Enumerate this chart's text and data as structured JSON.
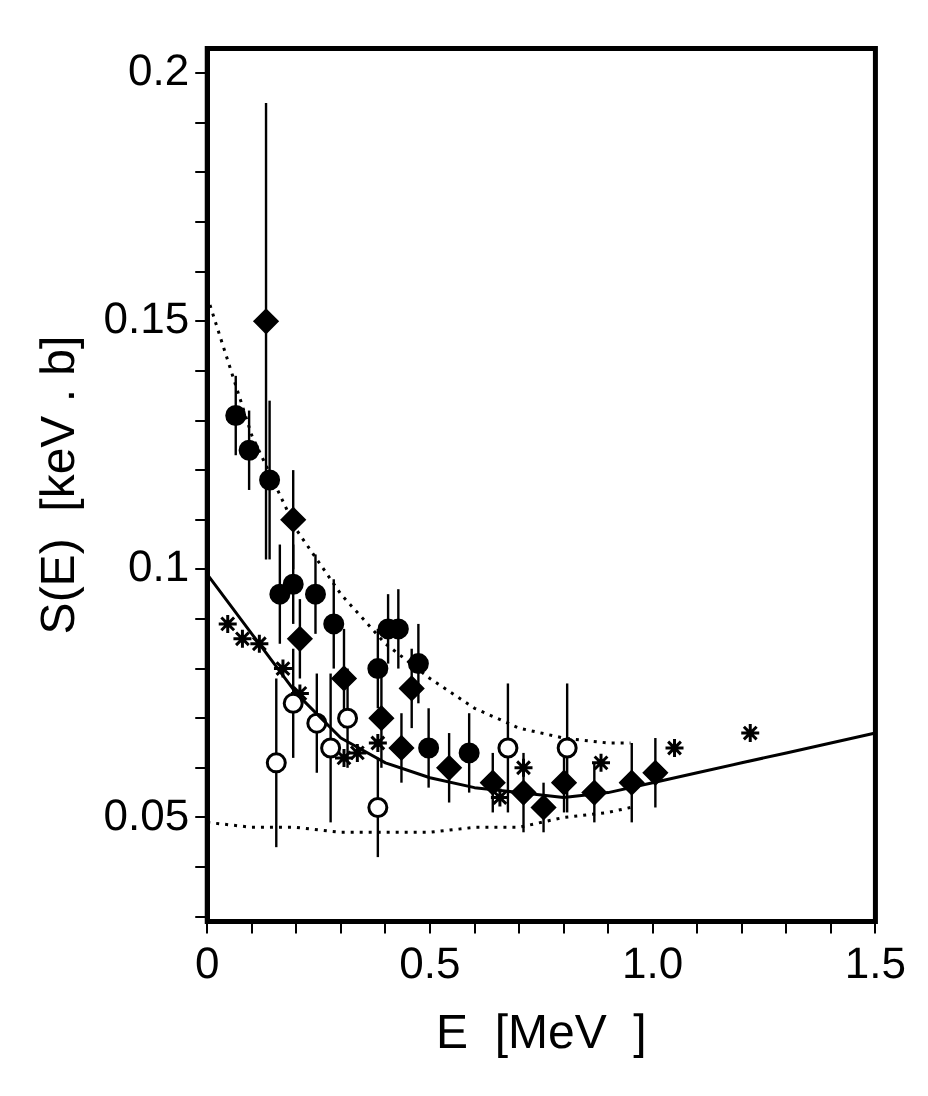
{
  "chart_data": {
    "type": "scatter",
    "xlabel": "E  [MeV  ]",
    "ylabel": "S(E)  [keV . b]",
    "xlim": [
      0,
      1.5
    ],
    "ylim": [
      0.029,
      0.205
    ],
    "xticks": [
      0,
      {
        "value": 0.1,
        "label": null
      },
      {
        "value": 0.2,
        "label": null
      },
      {
        "value": 0.3,
        "label": null
      },
      {
        "value": 0.4,
        "label": null
      },
      0.5,
      {
        "value": 0.6,
        "label": null
      },
      {
        "value": 0.7,
        "label": null
      },
      {
        "value": 0.8,
        "label": null
      },
      {
        "value": 0.9,
        "label": null
      },
      {
        "value": 1,
        "label": "1.0"
      },
      {
        "value": 1.1,
        "label": null
      },
      {
        "value": 1.2,
        "label": null
      },
      {
        "value": 1.3,
        "label": null
      },
      {
        "value": 1.4,
        "label": null
      },
      1.5
    ],
    "yticks": [
      {
        "value": 0.03,
        "label": null
      },
      {
        "value": 0.04,
        "label": null
      },
      0.05,
      {
        "value": 0.06,
        "label": null
      },
      {
        "value": 0.07,
        "label": null
      },
      {
        "value": 0.08,
        "label": null
      },
      {
        "value": 0.09,
        "label": null
      },
      0.1,
      {
        "value": 0.11,
        "label": null
      },
      {
        "value": 0.12,
        "label": null
      },
      {
        "value": 0.13,
        "label": null
      },
      {
        "value": 0.14,
        "label": null
      },
      0.15,
      {
        "value": 0.16,
        "label": null
      },
      {
        "value": 0.17,
        "label": null
      },
      {
        "value": 0.18,
        "label": null
      },
      {
        "value": 0.19,
        "label": null
      },
      0.2
    ],
    "grid": false,
    "legend": false,
    "series": [
      {
        "type": "line",
        "color": "#000000",
        "marker": "none",
        "line_style": "dotted",
        "x": [
          0,
          0.1,
          0.2,
          0.3,
          0.4,
          0.5,
          0.6,
          0.7,
          0.8,
          0.9,
          0.95
        ],
        "values": [
          0.155,
          0.127,
          0.108,
          0.095,
          0.085,
          0.078,
          0.072,
          0.068,
          0.066,
          0.065,
          0.065
        ]
      },
      {
        "type": "line",
        "color": "#000000",
        "marker": "none",
        "line_style": "solid",
        "x": [
          0,
          0.1,
          0.2,
          0.3,
          0.4,
          0.5,
          0.6,
          0.7,
          0.8,
          0.9,
          1.0,
          1.1,
          1.2,
          1.3,
          1.4,
          1.5
        ],
        "values": [
          0.099,
          0.087,
          0.075,
          0.066,
          0.061,
          0.058,
          0.056,
          0.055,
          0.054,
          0.055,
          0.057,
          0.059,
          0.061,
          0.063,
          0.065,
          0.067
        ]
      },
      {
        "type": "line",
        "color": "#000000",
        "marker": "none",
        "line_style": "dotted",
        "x": [
          0,
          0.1,
          0.2,
          0.3,
          0.4,
          0.5,
          0.6,
          0.7,
          0.8,
          0.9,
          0.95
        ],
        "values": [
          0.049,
          0.048,
          0.048,
          0.047,
          0.047,
          0.047,
          0.048,
          0.048,
          0.05,
          0.051,
          0.052
        ]
      },
      {
        "color": "#000000",
        "marker": "circle",
        "x": [
          0.064,
          0.094,
          0.14,
          0.163,
          0.193,
          0.243,
          0.284,
          0.383,
          0.406,
          0.429,
          0.474,
          0.497,
          0.588
        ],
        "values": [
          0.131,
          0.124,
          0.118,
          0.095,
          0.097,
          0.095,
          0.089,
          0.08,
          0.088,
          0.088,
          0.081,
          0.064,
          0.063
        ],
        "errors": [
          0.008,
          0.008,
          0.016,
          0.01,
          0.008,
          0.008,
          0.009,
          0.008,
          0.007,
          0.008,
          0.008,
          0.008,
          0.008
        ]
      },
      {
        "color": "#000000",
        "marker": "diamond",
        "x": [
          0.132,
          0.193,
          0.208,
          0.307,
          0.391,
          0.436,
          0.459,
          0.543,
          0.641,
          0.71,
          0.755,
          0.801,
          0.869,
          0.953,
          1.006
        ],
        "values": [
          0.15,
          0.11,
          0.086,
          0.078,
          0.07,
          0.064,
          0.076,
          0.06,
          0.057,
          0.055,
          0.052,
          0.057,
          0.055,
          0.057,
          0.059
        ],
        "errors": [
          [
            0.102,
            0.194
          ],
          0.01,
          0.008,
          0.01,
          0.01,
          0.007,
          0.008,
          0.007,
          0.006,
          0.008,
          0.005,
          0.006,
          0.006,
          0.008,
          0.007
        ]
      },
      {
        "color": "#ffffff",
        "marker": "circle",
        "x": [
          0.155,
          0.193,
          0.246,
          0.277,
          0.315,
          0.383,
          0.675,
          0.808
        ],
        "values": [
          0.061,
          0.073,
          0.069,
          0.064,
          0.07,
          0.052,
          0.064,
          0.064
        ],
        "errors": [
          0.017,
          0.011,
          0.01,
          0.015,
          0.01,
          0.01,
          0.013,
          0.013
        ]
      },
      {
        "color": "#000000",
        "marker": "cross",
        "x": [
          0.046,
          0.079,
          0.117,
          0.17,
          0.208,
          0.307,
          0.337,
          0.383,
          0.657,
          0.71,
          0.884,
          1.049,
          1.219
        ],
        "values": [
          0.089,
          0.086,
          0.085,
          0.08,
          0.075,
          0.062,
          0.063,
          0.065,
          0.054,
          0.06,
          0.061,
          0.064,
          0.067
        ]
      }
    ]
  }
}
